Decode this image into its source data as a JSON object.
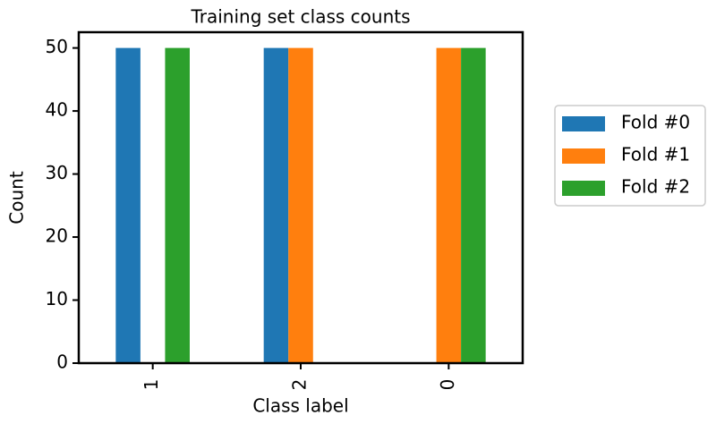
{
  "chart_data": {
    "type": "bar",
    "title": "Training set class counts",
    "x_label": "Class label",
    "y_label": "Count",
    "categories": [
      "1",
      "2",
      "0"
    ],
    "series": [
      {
        "name": "Fold #0",
        "color": "#1f77b4",
        "values": [
          50,
          50,
          null
        ]
      },
      {
        "name": "Fold #1",
        "color": "#ff7f0e",
        "values": [
          null,
          50,
          50
        ]
      },
      {
        "name": "Fold #2",
        "color": "#2ca02c",
        "values": [
          50,
          null,
          50
        ]
      }
    ],
    "ylim": [
      0,
      52.5
    ],
    "yticks": [
      0,
      10,
      20,
      30,
      40,
      50
    ],
    "legend": "right"
  }
}
